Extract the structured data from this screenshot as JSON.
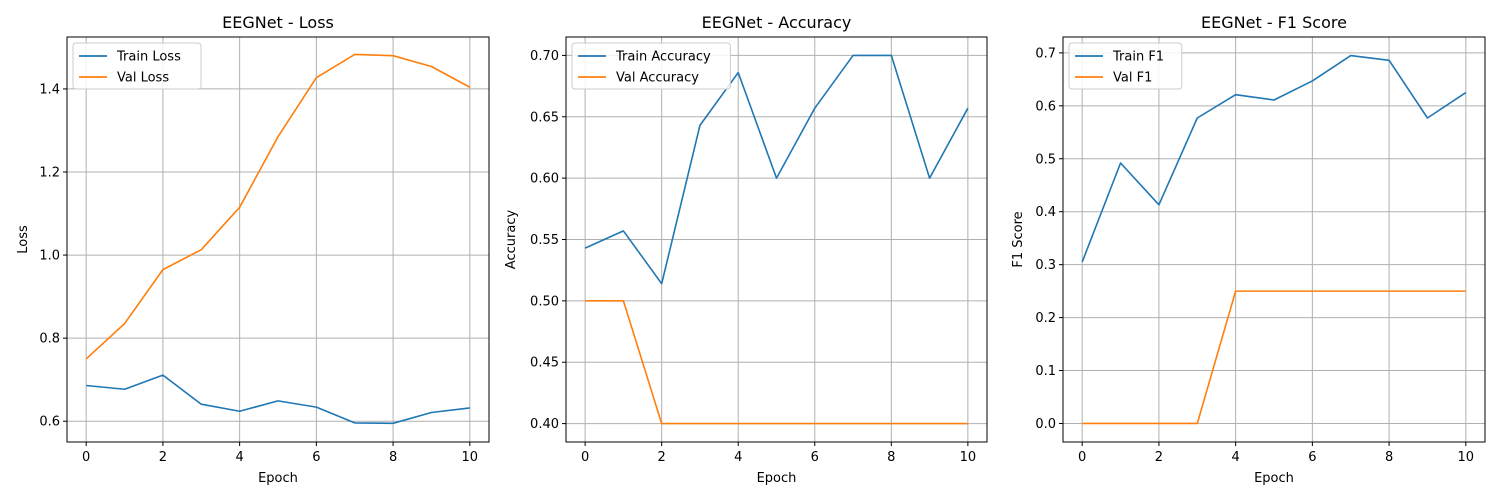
{
  "colors": {
    "train": "#1f77b4",
    "val": "#ff7f0e"
  },
  "chart_data": [
    {
      "type": "line",
      "title": "EEGNet - Loss",
      "xlabel": "Epoch",
      "ylabel": "Loss",
      "x": [
        0,
        1,
        2,
        3,
        4,
        5,
        6,
        7,
        8,
        9,
        10
      ],
      "xlim": [
        -0.5,
        10.5
      ],
      "ylim": [
        0.55,
        1.525
      ],
      "xticks": [
        0,
        2,
        4,
        6,
        8,
        10
      ],
      "yticks": [
        0.6,
        0.8,
        1.0,
        1.2,
        1.4
      ],
      "ytick_labels": [
        "0.6",
        "0.8",
        "1.0",
        "1.2",
        "1.4"
      ],
      "grid": true,
      "legend": "top-left",
      "series": [
        {
          "name": "Train Loss",
          "color": "#1f77b4",
          "values": [
            0.686,
            0.677,
            0.711,
            0.641,
            0.624,
            0.649,
            0.634,
            0.596,
            0.595,
            0.621,
            0.632
          ]
        },
        {
          "name": "Val Loss",
          "color": "#ff7f0e",
          "values": [
            0.75,
            0.835,
            0.965,
            1.013,
            1.115,
            1.285,
            1.427,
            1.483,
            1.48,
            1.454,
            1.404
          ]
        }
      ]
    },
    {
      "type": "line",
      "title": "EEGNet - Accuracy",
      "xlabel": "Epoch",
      "ylabel": "Accuracy",
      "x": [
        0,
        1,
        2,
        3,
        4,
        5,
        6,
        7,
        8,
        9,
        10
      ],
      "xlim": [
        -0.5,
        10.5
      ],
      "ylim": [
        0.385,
        0.715
      ],
      "xticks": [
        0,
        2,
        4,
        6,
        8,
        10
      ],
      "yticks": [
        0.4,
        0.45,
        0.5,
        0.55,
        0.6,
        0.65,
        0.7
      ],
      "ytick_labels": [
        "0.40",
        "0.45",
        "0.50",
        "0.55",
        "0.60",
        "0.65",
        "0.70"
      ],
      "grid": true,
      "legend": "top-left",
      "series": [
        {
          "name": "Train Accuracy",
          "color": "#1f77b4",
          "values": [
            0.543,
            0.557,
            0.514,
            0.643,
            0.686,
            0.6,
            0.657,
            0.7,
            0.7,
            0.6,
            0.657
          ]
        },
        {
          "name": "Val Accuracy",
          "color": "#ff7f0e",
          "values": [
            0.5,
            0.5,
            0.4,
            0.4,
            0.4,
            0.4,
            0.4,
            0.4,
            0.4,
            0.4,
            0.4
          ]
        }
      ]
    },
    {
      "type": "line",
      "title": "EEGNet - F1 Score",
      "xlabel": "Epoch",
      "ylabel": "F1 Score",
      "x": [
        0,
        1,
        2,
        3,
        4,
        5,
        6,
        7,
        8,
        9,
        10
      ],
      "xlim": [
        -0.5,
        10.5
      ],
      "ylim": [
        -0.035,
        0.73
      ],
      "xticks": [
        0,
        2,
        4,
        6,
        8,
        10
      ],
      "yticks": [
        0.0,
        0.1,
        0.2,
        0.3,
        0.4,
        0.5,
        0.6,
        0.7
      ],
      "ytick_labels": [
        "0.0",
        "0.1",
        "0.2",
        "0.3",
        "0.4",
        "0.5",
        "0.6",
        "0.7"
      ],
      "grid": true,
      "legend": "top-left",
      "series": [
        {
          "name": "Train F1",
          "color": "#1f77b4",
          "values": [
            0.305,
            0.492,
            0.413,
            0.577,
            0.621,
            0.611,
            0.647,
            0.695,
            0.686,
            0.577,
            0.625
          ]
        },
        {
          "name": "Val F1",
          "color": "#ff7f0e",
          "values": [
            0.0,
            0.0,
            0.0,
            0.0,
            0.25,
            0.25,
            0.25,
            0.25,
            0.25,
            0.25,
            0.25
          ]
        }
      ]
    }
  ]
}
